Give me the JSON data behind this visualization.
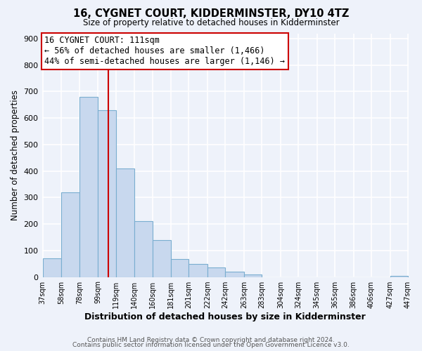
{
  "title": "16, CYGNET COURT, KIDDERMINSTER, DY10 4TZ",
  "subtitle": "Size of property relative to detached houses in Kidderminster",
  "xlabel": "Distribution of detached houses by size in Kidderminster",
  "ylabel": "Number of detached properties",
  "bar_color": "#c8d8ee",
  "bar_edge_color": "#7aaed0",
  "bins": [
    37,
    58,
    78,
    99,
    119,
    140,
    160,
    181,
    201,
    222,
    242,
    263,
    283,
    304,
    324,
    345,
    365,
    386,
    406,
    427,
    447
  ],
  "counts": [
    70,
    320,
    680,
    630,
    410,
    210,
    140,
    68,
    48,
    37,
    20,
    10,
    0,
    0,
    0,
    0,
    0,
    0,
    0,
    5
  ],
  "x_tick_labels": [
    "37sqm",
    "58sqm",
    "78sqm",
    "99sqm",
    "119sqm",
    "140sqm",
    "160sqm",
    "181sqm",
    "201sqm",
    "222sqm",
    "242sqm",
    "263sqm",
    "283sqm",
    "304sqm",
    "324sqm",
    "345sqm",
    "365sqm",
    "386sqm",
    "406sqm",
    "427sqm",
    "447sqm"
  ],
  "property_line_x": 111,
  "annotation_title": "16 CYGNET COURT: 111sqm",
  "annotation_line1": "← 56% of detached houses are smaller (1,466)",
  "annotation_line2": "44% of semi-detached houses are larger (1,146) →",
  "annotation_box_color": "#ffffff",
  "annotation_border_color": "#cc0000",
  "vline_color": "#cc0000",
  "ylim": [
    0,
    920
  ],
  "footer1": "Contains HM Land Registry data © Crown copyright and database right 2024.",
  "footer2": "Contains public sector information licensed under the Open Government Licence v3.0.",
  "background_color": "#eef2fa",
  "grid_color": "#ffffff"
}
